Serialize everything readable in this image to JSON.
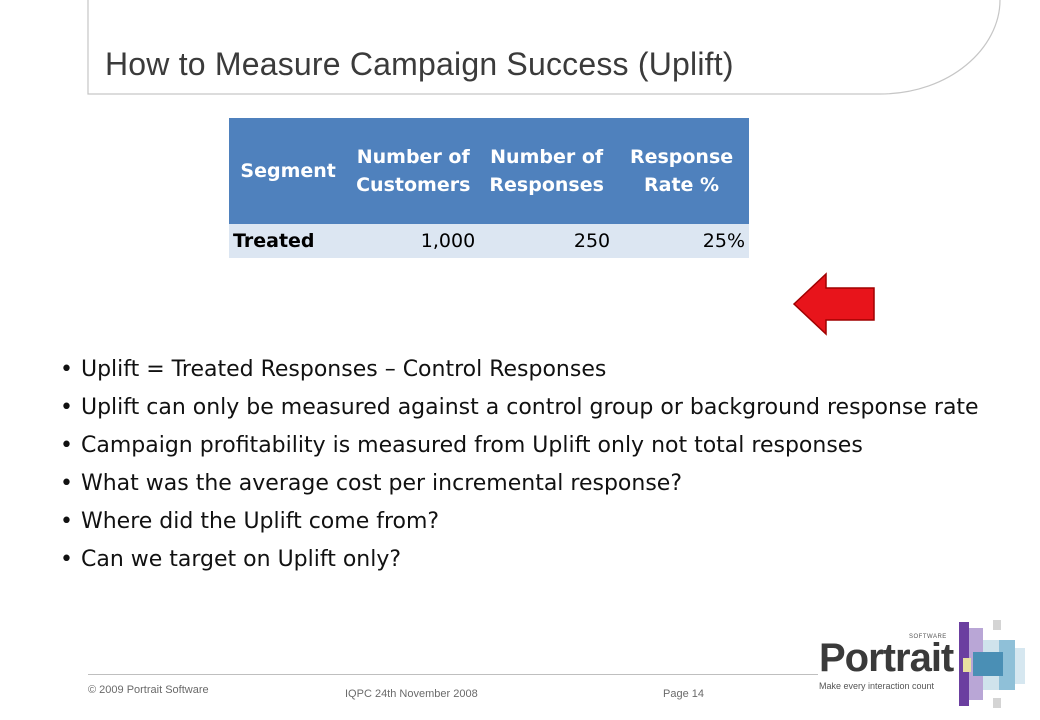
{
  "slide": {
    "title": "How to Measure Campaign Success (Uplift)"
  },
  "table": {
    "headers": [
      "Segment",
      "Number of Customers",
      "Number of Responses",
      "Response Rate %"
    ],
    "header_lines": [
      [
        "Segment"
      ],
      [
        "Number of",
        "Customers"
      ],
      [
        "Number of",
        "Responses"
      ],
      [
        "Response",
        "Rate %"
      ]
    ],
    "rows": [
      {
        "segment": "Treated",
        "customers": "1,000",
        "responses": "250",
        "rate": "25%"
      }
    ]
  },
  "arrow": {
    "direction": "left",
    "color": "#e8141b"
  },
  "bullets": [
    "Uplift = Treated Responses – Control Responses",
    "Uplift can only be measured against a control group or background response rate",
    "Campaign profitability is measured from Uplift only not total responses",
    "What was the average cost per incremental response?",
    "Where did the Uplift come from?",
    "Can we target on Uplift only?"
  ],
  "footer": {
    "copyright": "© 2009 Portrait Software",
    "event": "IQPC 24th November 2008",
    "page": "Page 14"
  },
  "logo": {
    "word": "Portrait",
    "superscript": "SOFTWARE",
    "tagline": "Make every interaction count"
  },
  "colors": {
    "header_fill": "#4f81bd",
    "row_fill": "#dce6f2",
    "arrow": "#e8141b",
    "title_text": "#3b3b3b"
  }
}
